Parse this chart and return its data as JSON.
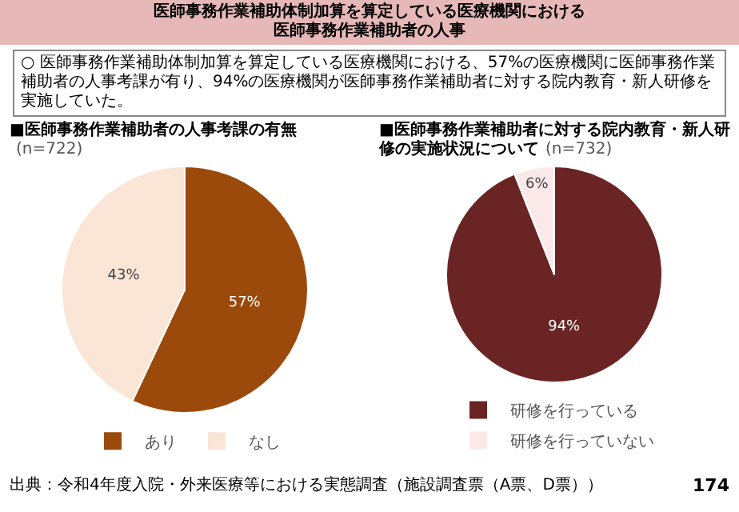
{
  "chart_data": [
    {
      "type": "pie",
      "title": "■医師事務作業補助者の人事考課の有無",
      "subtitle": "(n=722)",
      "categories": [
        "あり",
        "なし"
      ],
      "values": [
        57,
        43
      ],
      "colors": [
        "#9c4a0c",
        "#fbe5d6"
      ],
      "value_labels": [
        "57%",
        "43%"
      ],
      "legend": "bottom",
      "annotations": [
        "医師事務作業補助体制加算を算定している医療機関における",
        "医師事務作業補助者の人事",
        "○ 医師事務作業補助体制加算を算定している医療機関における、57%の医療機関に医師事務作業補助者の人事考課が有り、94%の医療機関が医師事務作業補助者に対する院内教育・新人研修を実施していた。"
      ]
    },
    {
      "type": "pie",
      "title": "■医師事務作業補助者に対する院内教育・新人研修の実施状況について",
      "subtitle": "(n=732)",
      "categories": [
        "研修を行っている",
        "研修を行っていない"
      ],
      "values": [
        94,
        6
      ],
      "colors": [
        "#6b2424",
        "#fbe9e9"
      ],
      "value_labels": [
        "94%",
        "6%"
      ],
      "legend": "bottom",
      "annotations": [
        "出典：令和4年度入院・外来医療等における実態調査（施設調査票（A票、D票））",
        "174"
      ]
    }
  ]
}
